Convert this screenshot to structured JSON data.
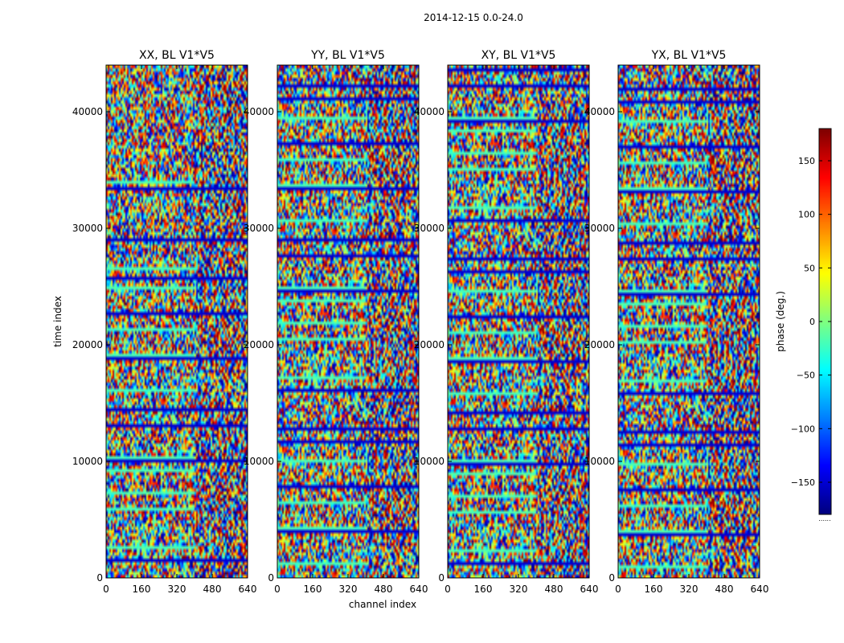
{
  "suptitle": "2014-12-15 0.0-24.0",
  "chart_data": [
    {
      "type": "heatmap",
      "title": "XX, BL V1*V5",
      "xlabel": "channel index",
      "ylabel": "time index",
      "xlim": [
        0,
        640
      ],
      "ylim": [
        0,
        44000
      ],
      "xticks": [
        0,
        160,
        320,
        480,
        640
      ],
      "yticks": [
        0,
        10000,
        20000,
        30000,
        40000
      ],
      "value": "phase (deg.)"
    },
    {
      "type": "heatmap",
      "title": "YY, BL V1*V5",
      "xlabel": "channel index",
      "ylabel": "time index",
      "xlim": [
        0,
        640
      ],
      "ylim": [
        0,
        44000
      ],
      "xticks": [
        0,
        160,
        320,
        480,
        640
      ],
      "yticks": [
        0,
        10000,
        20000,
        30000,
        40000
      ],
      "value": "phase (deg.)"
    },
    {
      "type": "heatmap",
      "title": "XY, BL V1*V5",
      "xlabel": "channel index",
      "ylabel": "time index",
      "xlim": [
        0,
        640
      ],
      "ylim": [
        0,
        44000
      ],
      "xticks": [
        0,
        160,
        320,
        480,
        640
      ],
      "yticks": [
        0,
        10000,
        20000,
        30000,
        40000
      ],
      "value": "phase (deg.)"
    },
    {
      "type": "heatmap",
      "title": "YX, BL V1*V5",
      "xlabel": "channel index",
      "ylabel": "time index",
      "xlim": [
        0,
        640
      ],
      "ylim": [
        0,
        44000
      ],
      "xticks": [
        0,
        160,
        320,
        480,
        640
      ],
      "yticks": [
        0,
        10000,
        20000,
        30000,
        40000
      ],
      "value": "phase (deg.)"
    }
  ],
  "colorbar": {
    "label": "phase (deg.)",
    "range": [
      -180,
      180
    ],
    "ticks": [
      -150,
      -100,
      -50,
      0,
      50,
      100,
      150
    ],
    "tick_labels": [
      "−150",
      "−100",
      "−50",
      "0",
      "50",
      "100",
      "150"
    ],
    "colormap": "jet",
    "footer": "......"
  },
  "xlabel_shared": "channel index",
  "ylabel_shared": "time index"
}
